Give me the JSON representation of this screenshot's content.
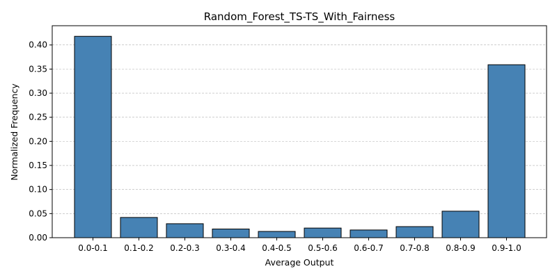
{
  "chart_data": {
    "type": "bar",
    "title": "Random_Forest_TS-TS_With_Fairness",
    "xlabel": "Average Output",
    "ylabel": "Normalized Frequency",
    "categories": [
      "0.0-0.1",
      "0.1-0.2",
      "0.2-0.3",
      "0.3-0.4",
      "0.4-0.5",
      "0.5-0.6",
      "0.6-0.7",
      "0.7-0.8",
      "0.8-0.9",
      "0.9-1.0"
    ],
    "values": [
      0.418,
      0.042,
      0.029,
      0.018,
      0.013,
      0.02,
      0.016,
      0.023,
      0.055,
      0.359
    ],
    "ylim": [
      0,
      0.44
    ],
    "yticks": [
      "0.00",
      "0.05",
      "0.10",
      "0.15",
      "0.20",
      "0.25",
      "0.30",
      "0.35",
      "0.40"
    ],
    "grid": "y-dashed",
    "bar_color": "#4682b4",
    "edge_color": "#000000"
  }
}
